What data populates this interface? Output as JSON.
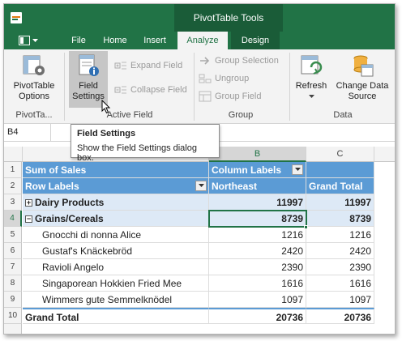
{
  "ribbon_tabs": {
    "context_group": "PivotTable Tools",
    "file": "File",
    "home": "Home",
    "insert": "Insert",
    "analyze": "Analyze",
    "design": "Design"
  },
  "ribbon": {
    "pivot_options_label": "PivotTable\nOptions",
    "pivot_options_l1": "PivotTable",
    "pivot_options_l2": "Options",
    "pivot_group": "PivotTa...",
    "field_settings_l1": "Field",
    "field_settings_l2": "Settings",
    "expand_field": "Expand Field",
    "collapse_field": "Collapse Field",
    "active_field_group": "Active Field",
    "group_selection": "Group Selection",
    "ungroup": "Ungroup",
    "group_field": "Group Field",
    "group_group": "Group",
    "refresh": "Refresh",
    "change_source_l1": "Change Data",
    "change_source_l2": "Source",
    "data_group": "Data"
  },
  "name_box": "B4",
  "tooltip": {
    "title": "Field Settings",
    "description": "Show the Field Settings dialog box."
  },
  "columns": [
    "A",
    "B",
    "C"
  ],
  "rows": [
    "1",
    "2",
    "3",
    "4",
    "5",
    "6",
    "7",
    "8",
    "9",
    "10"
  ],
  "pivot": {
    "sum_of_sales": "Sum of Sales",
    "column_labels": "Column Labels",
    "row_labels": "Row Labels",
    "northeast": "Northeast",
    "grand_total_col": "Grand Total",
    "categories": [
      {
        "name": "Dairy Products",
        "b": "11997",
        "c": "11997",
        "collapsed": true
      },
      {
        "name": "Grains/Cereals",
        "b": "8739",
        "c": "8739",
        "collapsed": false
      }
    ],
    "items": [
      {
        "name": "Gnocchi di nonna Alice",
        "b": "1216",
        "c": "1216"
      },
      {
        "name": "Gustaf's Knäckebröd",
        "b": "2420",
        "c": "2420"
      },
      {
        "name": "Ravioli Angelo",
        "b": "2390",
        "c": "2390"
      },
      {
        "name": "Singaporean Hokkien Fried Mee",
        "b": "1616",
        "c": "1616"
      },
      {
        "name": "Wimmers gute Semmelknödel",
        "b": "1097",
        "c": "1097"
      }
    ],
    "grand_total": {
      "name": "Grand Total",
      "b": "20736",
      "c": "20736"
    }
  },
  "colors": {
    "accent": "#217346",
    "pivot_header": "#5b9bd5",
    "pivot_light": "#dde9f6"
  }
}
